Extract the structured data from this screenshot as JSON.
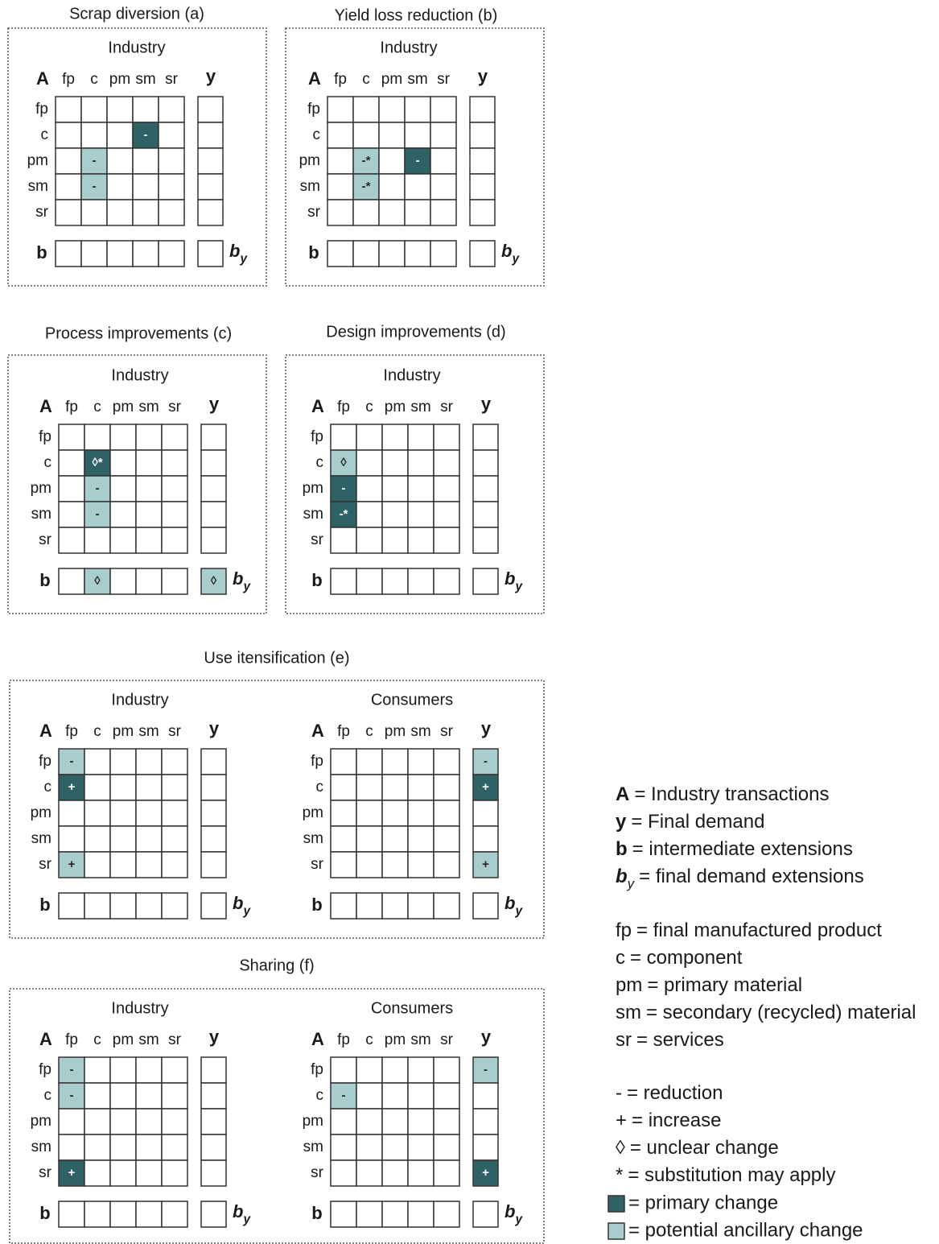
{
  "labels": {
    "matrix": "A",
    "final": "y",
    "ext": "b",
    "ext_y": {
      "base": "b",
      "sub": "y"
    },
    "sectors": [
      "fp",
      "c",
      "pm",
      "sm",
      "sr"
    ]
  },
  "change_colors": {
    "primary": "#2e6265",
    "ancillary": "#a9cdcd"
  },
  "panels": [
    {
      "title": "Scrap diversion (a)",
      "blocks": [
        {
          "name": "Industry",
          "cells": [
            {
              "row": "c",
              "col": "sm",
              "change": "primary",
              "text": "-"
            },
            {
              "row": "pm",
              "col": "c",
              "change": "ancillary",
              "text": "-"
            },
            {
              "row": "sm",
              "col": "c",
              "change": "ancillary",
              "text": "-"
            }
          ]
        }
      ]
    },
    {
      "title": "Yield loss reduction (b)",
      "blocks": [
        {
          "name": "Industry",
          "cells": [
            {
              "row": "pm",
              "col": "c",
              "change": "ancillary",
              "text": "-*"
            },
            {
              "row": "sm",
              "col": "c",
              "change": "ancillary",
              "text": "-*"
            },
            {
              "row": "pm",
              "col": "sm",
              "change": "primary",
              "text": "-"
            }
          ]
        }
      ]
    },
    {
      "title": "Process improvements (c)",
      "blocks": [
        {
          "name": "Industry",
          "cells": [
            {
              "row": "c",
              "col": "c",
              "change": "primary",
              "text": "◊*"
            },
            {
              "row": "pm",
              "col": "c",
              "change": "ancillary",
              "text": "-"
            },
            {
              "row": "sm",
              "col": "c",
              "change": "ancillary",
              "text": "-"
            },
            {
              "row": "b",
              "col": "c",
              "change": "ancillary",
              "text": "◊"
            },
            {
              "row": "b",
              "col": "y",
              "change": "ancillary",
              "text": "◊"
            }
          ]
        }
      ]
    },
    {
      "title": "Design improvements (d)",
      "blocks": [
        {
          "name": "Industry",
          "cells": [
            {
              "row": "c",
              "col": "fp",
              "change": "ancillary",
              "text": "◊"
            },
            {
              "row": "pm",
              "col": "fp",
              "change": "primary",
              "text": "-"
            },
            {
              "row": "sm",
              "col": "fp",
              "change": "primary",
              "text": "-*"
            }
          ]
        }
      ]
    },
    {
      "title": "Use itensification (e)",
      "blocks": [
        {
          "name": "Industry",
          "cells": [
            {
              "row": "fp",
              "col": "fp",
              "change": "ancillary",
              "text": "-"
            },
            {
              "row": "c",
              "col": "fp",
              "change": "primary",
              "text": "+"
            },
            {
              "row": "sr",
              "col": "fp",
              "change": "ancillary",
              "text": "+"
            }
          ]
        },
        {
          "name": "Consumers",
          "cells": [
            {
              "row": "fp",
              "col": "y",
              "change": "ancillary",
              "text": "-"
            },
            {
              "row": "c",
              "col": "y",
              "change": "primary",
              "text": "+"
            },
            {
              "row": "sr",
              "col": "y",
              "change": "ancillary",
              "text": "+"
            }
          ]
        }
      ]
    },
    {
      "title": "Sharing (f)",
      "blocks": [
        {
          "name": "Industry",
          "cells": [
            {
              "row": "fp",
              "col": "fp",
              "change": "ancillary",
              "text": "-"
            },
            {
              "row": "c",
              "col": "fp",
              "change": "ancillary",
              "text": "-"
            },
            {
              "row": "sr",
              "col": "fp",
              "change": "primary",
              "text": "+"
            }
          ]
        },
        {
          "name": "Consumers",
          "cells": [
            {
              "row": "c",
              "col": "fp",
              "change": "ancillary",
              "text": "-"
            },
            {
              "row": "fp",
              "col": "y",
              "change": "ancillary",
              "text": "-"
            },
            {
              "row": "sr",
              "col": "y",
              "change": "primary",
              "text": "+"
            }
          ]
        }
      ]
    }
  ],
  "legend": {
    "groups": [
      {
        "bold_keys": true,
        "items": [
          {
            "key": "A",
            "text": "= Industry transactions"
          },
          {
            "key": "y",
            "text": "= Final demand"
          },
          {
            "key": "b",
            "text": "= intermediate extensions"
          },
          {
            "key": "b",
            "sub": "y",
            "text": "= final demand extensions"
          }
        ]
      },
      {
        "items": [
          {
            "key": "fp",
            "text": "= final manufactured product"
          },
          {
            "key": "c",
            "text": "= component"
          },
          {
            "key": "pm",
            "text": "= primary material"
          },
          {
            "key": "sm",
            "text": "= secondary (recycled) material"
          },
          {
            "key": "sr",
            "text": "= services"
          }
        ]
      },
      {
        "items": [
          {
            "key": "-",
            "text": "= reduction"
          },
          {
            "key": "+",
            "text": "= increase"
          },
          {
            "key": "◊",
            "text": "= unclear change"
          },
          {
            "key": "*",
            "text": "= substitution may apply"
          },
          {
            "swatch": "primary",
            "text": "= primary change"
          },
          {
            "swatch": "ancillary",
            "text": "= potential ancillary change"
          }
        ]
      }
    ]
  }
}
